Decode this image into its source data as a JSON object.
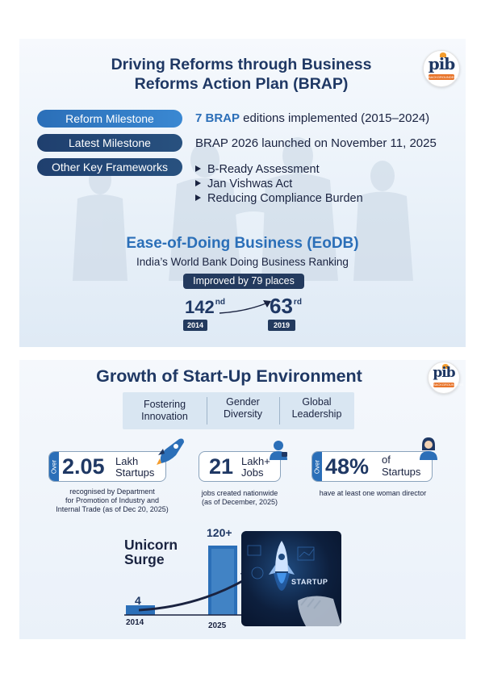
{
  "brap": {
    "title_line1": "Driving Reforms through Business",
    "title_line2": "Reforms Action Plan (BRAP)",
    "logo_text": "pib",
    "logo_band": "BACKGROUNDERS",
    "rows": [
      {
        "label": "Reform Milestone",
        "highlight": "7 BRAP",
        "text": " editions implemented (2015–2024)"
      },
      {
        "label": "Latest Milestone",
        "highlight": "",
        "text": "BRAP 2026 launched on November 11, 2025"
      },
      {
        "label": "Other Key Frameworks",
        "highlight": "",
        "text": ""
      }
    ],
    "frameworks": [
      "B-Ready Assessment",
      "Jan Vishwas Act",
      "Reducing Compliance Burden"
    ],
    "eodb": {
      "title": "Ease-of-Doing Business (EoDB)",
      "subtitle": "India’s World Bank Doing Business Ranking",
      "improvement": "Improved by 79 places",
      "from_rank": "142",
      "from_suffix": "nd",
      "from_year": "2014",
      "to_rank": "63",
      "to_suffix": "rd",
      "to_year": "2019"
    }
  },
  "startup": {
    "title": "Growth of Start-Up Environment",
    "logo_text": "pib",
    "logo_band": "BACKGROUNDERS",
    "pillars": [
      {
        "line1": "Fostering",
        "line2": "Innovation"
      },
      {
        "line1": "Gender",
        "line2": "Diversity"
      },
      {
        "line1": "Global",
        "line2": "Leadership"
      }
    ],
    "stats": [
      {
        "over": "Over",
        "number": "2.05",
        "label1": "Lakh",
        "label2": "Startups",
        "desc1": "recognised by Department",
        "desc2": "for Promotion of Industry and",
        "desc3": "Internal Trade  (as of Dec 20, 2025)"
      },
      {
        "over": "",
        "number": "21",
        "label1": "Lakh+",
        "label2": "Jobs",
        "desc1": "jobs created nationwide",
        "desc2": "(as of December, 2025)",
        "desc3": ""
      },
      {
        "over": "Over",
        "number": "48%",
        "label1": "of",
        "label2": "Startups",
        "desc1": "have at least one woman director",
        "desc2": "",
        "desc3": ""
      }
    ],
    "unicorn": {
      "title_line1": "Unicorn",
      "title_line2": "Surge",
      "start_value": "4",
      "start_year": "2014",
      "end_value": "120+",
      "end_year": "2025"
    },
    "image_label": "STARTUP"
  },
  "colors": {
    "navy": "#1f3864",
    "accent_blue": "#2b6fb8",
    "pill_dark": "#233a5e",
    "saffron": "#e8742a"
  }
}
